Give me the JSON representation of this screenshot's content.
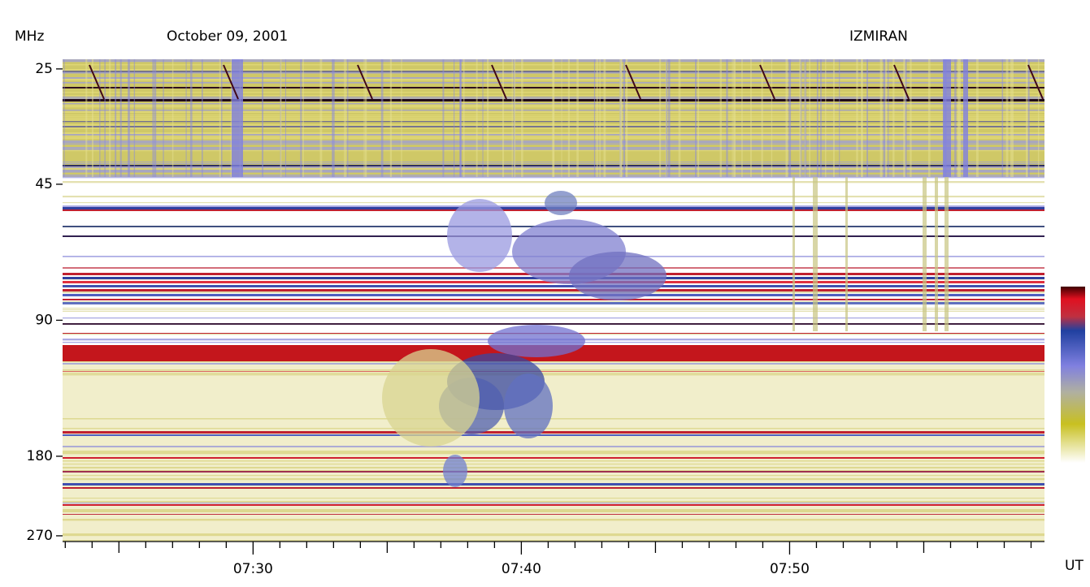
{
  "chart_data": {
    "type": "spectrogram",
    "title": "October 09, 2001",
    "observatory": "IZMIRAN",
    "ylabel": "MHz",
    "xlabel": "UT",
    "ylog": true,
    "yinverted": true,
    "ylim": [
      23.8,
      278
    ],
    "yticks": [
      25,
      45,
      90,
      180,
      270
    ],
    "xlim": [
      442.9,
      479.5
    ],
    "xticks": [
      {
        "value": 450,
        "label": "07:30"
      },
      {
        "value": 460,
        "label": "07:40"
      },
      {
        "value": 470,
        "label": "07:50"
      }
    ],
    "xminorticks": [
      443,
      444,
      445,
      446,
      447,
      448,
      449,
      451,
      452,
      453,
      454,
      455,
      456,
      457,
      458,
      459,
      461,
      462,
      463,
      464,
      465,
      466,
      467,
      468,
      469,
      471,
      472,
      473,
      474,
      475,
      476,
      477,
      478,
      479
    ]
  }
}
